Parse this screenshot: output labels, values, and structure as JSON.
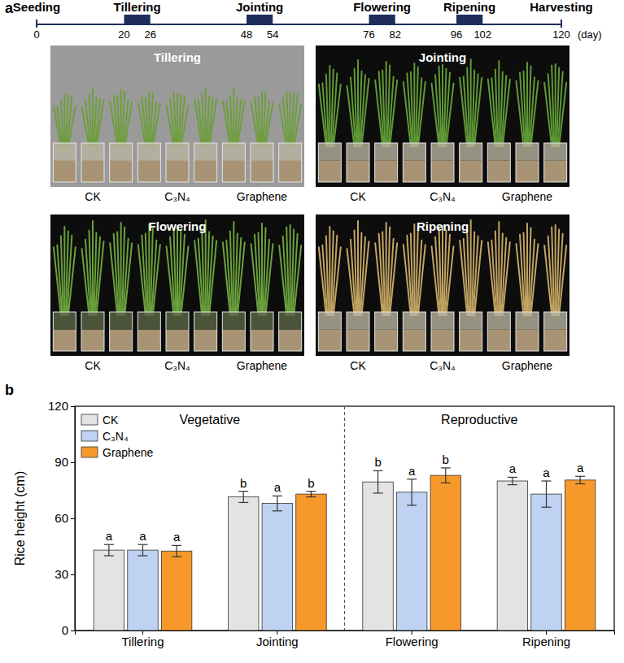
{
  "panel_labels": [
    "a",
    "b"
  ],
  "timeline": {
    "events": [
      {
        "label": "Seeding",
        "day": 0
      },
      {
        "label": "Harvesting",
        "day": 120
      }
    ],
    "periods": [
      {
        "label": "Tillering",
        "start": 20,
        "end": 26
      },
      {
        "label": "Jointing",
        "start": 48,
        "end": 54
      },
      {
        "label": "Flowering",
        "start": 76,
        "end": 82
      },
      {
        "label": "Ripening",
        "start": 96,
        "end": 102
      }
    ],
    "xlim": [
      0,
      120
    ],
    "ticks": [
      0,
      20,
      26,
      48,
      54,
      76,
      82,
      96,
      102,
      120
    ],
    "unit": "(day)"
  },
  "photos": [
    {
      "title": "Tillering",
      "groups": [
        "CK",
        "C₃N₄",
        "Graphene"
      ]
    },
    {
      "title": "Jointing",
      "groups": [
        "CK",
        "C₃N₄",
        "Graphene"
      ]
    },
    {
      "title": "Flowering",
      "groups": [
        "CK",
        "C₃N₄",
        "Graphene"
      ]
    },
    {
      "title": "Ripening",
      "groups": [
        "CK",
        "C₃N₄",
        "Graphene"
      ]
    }
  ],
  "chart_data": {
    "type": "bar",
    "categories": [
      "Tillering",
      "Jointing",
      "Flowering",
      "Ripening"
    ],
    "series": [
      {
        "name": "CK",
        "color": "#e3e3e3",
        "values": [
          43,
          71.5,
          79.5,
          80
        ],
        "errors": [
          3,
          3,
          6,
          2
        ],
        "letters": [
          "a",
          "b",
          "b",
          "a"
        ]
      },
      {
        "name": "C₃N₄",
        "color": "#bfd2f2",
        "values": [
          43,
          68,
          74,
          73
        ],
        "errors": [
          3,
          4,
          7,
          7
        ],
        "letters": [
          "a",
          "a",
          "a",
          "a"
        ]
      },
      {
        "name": "Graphene",
        "color": "#f7992a",
        "values": [
          42.5,
          73,
          83,
          80.5
        ],
        "errors": [
          3,
          1.5,
          4,
          2
        ],
        "letters": [
          "a",
          "b",
          "b",
          "a"
        ]
      }
    ],
    "ylabel": "Rice height (cm)",
    "ylim": [
      0,
      120
    ],
    "yticks": [
      0,
      30,
      60,
      90,
      120
    ],
    "annotations": [
      "Vegetative",
      "Reproductive"
    ],
    "legend": "top-left",
    "grid": false
  }
}
